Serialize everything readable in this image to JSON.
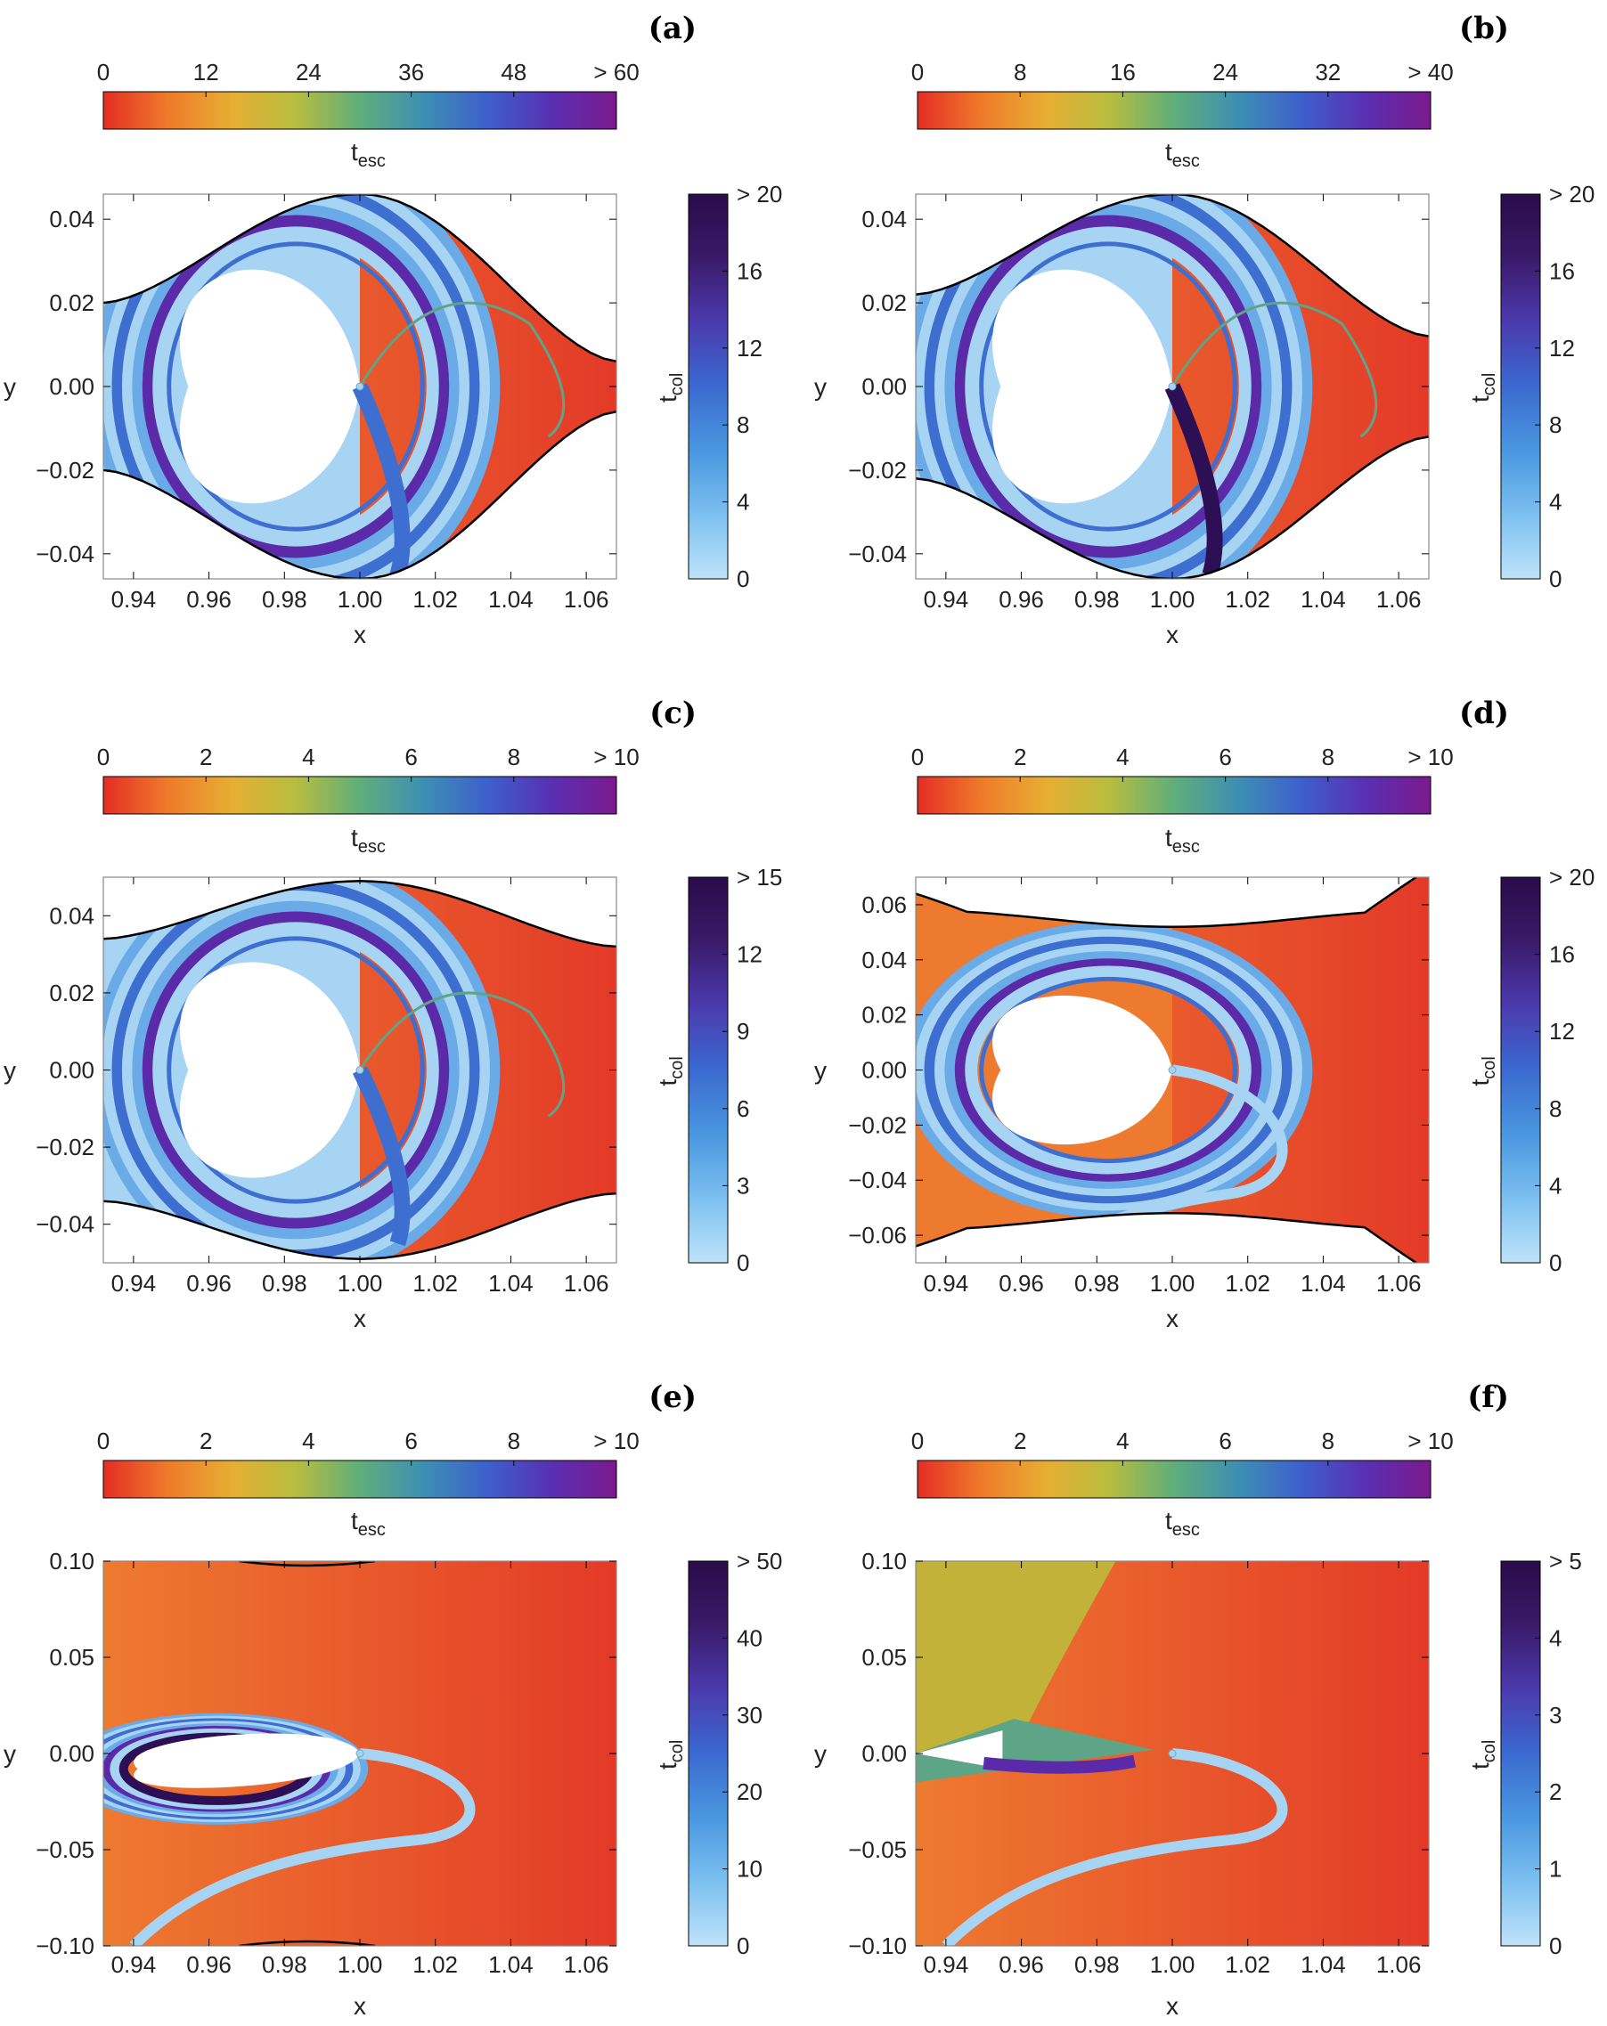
{
  "chart_data": [
    {
      "type": "heatmap",
      "panel": "(a)",
      "xlabel": "x",
      "ylabel": "y",
      "xlim": [
        0.932,
        1.068
      ],
      "ylim": [
        -0.046,
        0.046
      ],
      "xticks": [
        "0.94",
        "0.96",
        "0.98",
        "1.00",
        "1.02",
        "1.04",
        "1.06"
      ],
      "yticks": [
        "0.04",
        "0.02",
        "0.00",
        "−0.02",
        "−0.04"
      ],
      "esc_colorbar": {
        "label": "esc",
        "ticks": [
          "0",
          "12",
          "24",
          "36",
          "48",
          "> 60"
        ]
      },
      "col_colorbar": {
        "label": "col",
        "ticks": [
          "0",
          "4",
          "8",
          "12",
          "16",
          "> 20"
        ]
      }
    },
    {
      "type": "heatmap",
      "panel": "(b)",
      "xlabel": "x",
      "ylabel": "y",
      "xlim": [
        0.932,
        1.068
      ],
      "ylim": [
        -0.046,
        0.046
      ],
      "xticks": [
        "0.94",
        "0.96",
        "0.98",
        "1.00",
        "1.02",
        "1.04",
        "1.06"
      ],
      "yticks": [
        "0.04",
        "0.02",
        "0.00",
        "−0.02",
        "−0.04"
      ],
      "esc_colorbar": {
        "label": "esc",
        "ticks": [
          "0",
          "8",
          "16",
          "24",
          "32",
          "> 40"
        ]
      },
      "col_colorbar": {
        "label": "col",
        "ticks": [
          "0",
          "4",
          "8",
          "12",
          "16",
          "> 20"
        ]
      }
    },
    {
      "type": "heatmap",
      "panel": "(c)",
      "xlabel": "x",
      "ylabel": "y",
      "xlim": [
        0.932,
        1.068
      ],
      "ylim": [
        -0.05,
        0.05
      ],
      "xticks": [
        "0.94",
        "0.96",
        "0.98",
        "1.00",
        "1.02",
        "1.04",
        "1.06"
      ],
      "yticks": [
        "0.04",
        "0.02",
        "0.00",
        "−0.02",
        "−0.04"
      ],
      "esc_colorbar": {
        "label": "esc",
        "ticks": [
          "0",
          "2",
          "4",
          "6",
          "8",
          "> 10"
        ]
      },
      "col_colorbar": {
        "label": "col",
        "ticks": [
          "0",
          "3",
          "6",
          "9",
          "12",
          "> 15"
        ]
      }
    },
    {
      "type": "heatmap",
      "panel": "(d)",
      "xlabel": "x",
      "ylabel": "y",
      "xlim": [
        0.932,
        1.068
      ],
      "ylim": [
        -0.07,
        0.07
      ],
      "xticks": [
        "0.94",
        "0.96",
        "0.98",
        "1.00",
        "1.02",
        "1.04",
        "1.06"
      ],
      "yticks": [
        "0.06",
        "0.04",
        "0.02",
        "0.00",
        "−0.02",
        "−0.04",
        "−0.06"
      ],
      "esc_colorbar": {
        "label": "esc",
        "ticks": [
          "0",
          "2",
          "4",
          "6",
          "8",
          "> 10"
        ]
      },
      "col_colorbar": {
        "label": "col",
        "ticks": [
          "0",
          "4",
          "8",
          "12",
          "16",
          "> 20"
        ]
      }
    },
    {
      "type": "heatmap",
      "panel": "(e)",
      "xlabel": "x",
      "ylabel": "y",
      "xlim": [
        0.932,
        1.068
      ],
      "ylim": [
        -0.1,
        0.1
      ],
      "xticks": [
        "0.94",
        "0.96",
        "0.98",
        "1.00",
        "1.02",
        "1.04",
        "1.06"
      ],
      "yticks": [
        "0.10",
        "0.05",
        "0.00",
        "−0.05",
        "−0.10"
      ],
      "esc_colorbar": {
        "label": "esc",
        "ticks": [
          "0",
          "2",
          "4",
          "6",
          "8",
          "> 10"
        ]
      },
      "col_colorbar": {
        "label": "col",
        "ticks": [
          "0",
          "10",
          "20",
          "30",
          "40",
          "> 50"
        ]
      }
    },
    {
      "type": "heatmap",
      "panel": "(f)",
      "xlabel": "x",
      "ylabel": "y",
      "xlim": [
        0.932,
        1.068
      ],
      "ylim": [
        -0.1,
        0.1
      ],
      "xticks": [
        "0.94",
        "0.96",
        "0.98",
        "1.00",
        "1.02",
        "1.04",
        "1.06"
      ],
      "yticks": [
        "0.10",
        "0.05",
        "0.00",
        "−0.05",
        "−0.10"
      ],
      "esc_colorbar": {
        "label": "esc",
        "ticks": [
          "0",
          "2",
          "4",
          "6",
          "8",
          "> 10"
        ]
      },
      "col_colorbar": {
        "label": "col",
        "ticks": [
          "0",
          "1",
          "2",
          "3",
          "4",
          "> 5"
        ]
      }
    }
  ],
  "colors": {
    "esc_gradient": [
      "#e42d25",
      "#ef7a2a",
      "#e7ae33",
      "#b7bd3f",
      "#5fae7a",
      "#3d8fb4",
      "#3e5fcc",
      "#5a2fb0",
      "#7a1a8e"
    ],
    "col_gradient": [
      "#bfe3fa",
      "#7cc0f0",
      "#4a97e0",
      "#3b6ad0",
      "#4b3aae",
      "#3a1a6a",
      "#2a0b4a"
    ],
    "escape_orange": "#ee7a30",
    "escape_red": "#e33a28",
    "light_blue": "#a8d4f4",
    "mid_blue": "#6aaae6",
    "dark_blue": "#3e6fd0",
    "purple": "#5a2aa8",
    "dark_purple": "#2c0f55",
    "yellow_green": "#c3b23a",
    "green_teal": "#5ea487",
    "boundary": "#000000"
  }
}
